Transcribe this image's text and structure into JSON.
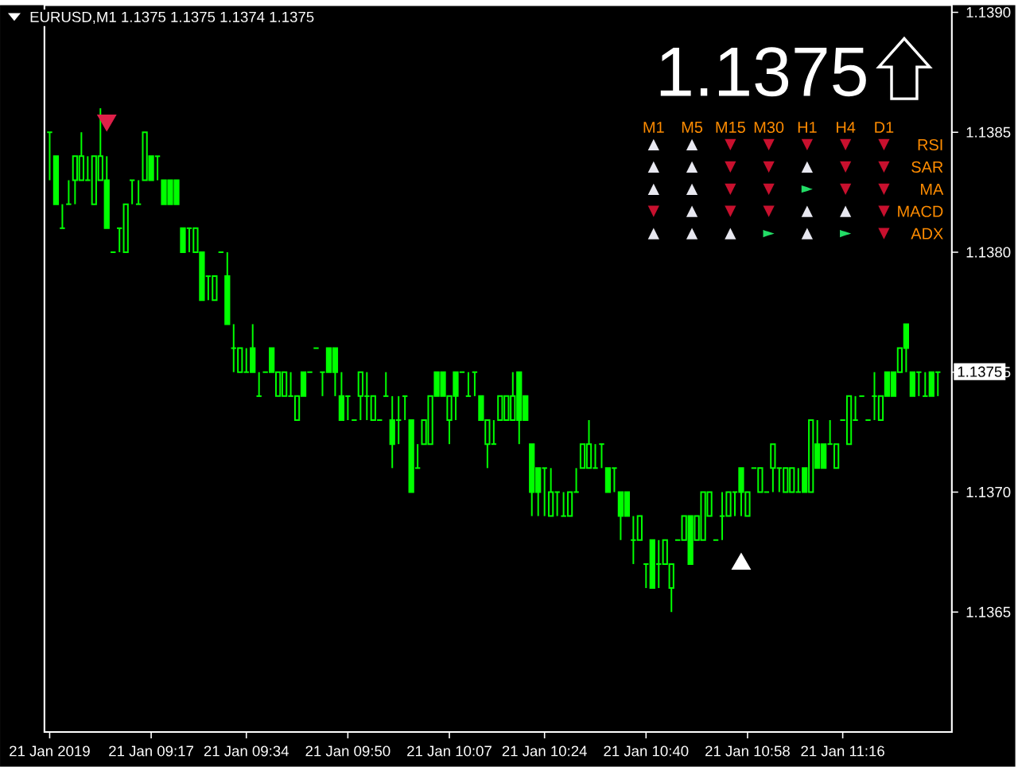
{
  "chart_data": [
    {
      "type": "candlestick",
      "title": "EURUSD,M1 1.1375 1.1375 1.1374 1.1375",
      "color": "#00ff00",
      "categories": [
        "21 Jan 2019",
        null,
        null,
        null,
        null,
        null,
        null,
        null,
        null,
        null,
        null,
        null,
        null,
        null,
        null,
        null,
        "21 Jan 09:17",
        null,
        null,
        null,
        null,
        null,
        null,
        null,
        null,
        null,
        null,
        null,
        null,
        null,
        null,
        "21 Jan 09:34",
        null,
        null,
        null,
        null,
        null,
        null,
        null,
        null,
        null,
        null,
        null,
        null,
        null,
        null,
        null,
        "21 Jan 09:50",
        null,
        null,
        null,
        null,
        null,
        null,
        null,
        null,
        null,
        null,
        null,
        null,
        null,
        null,
        null,
        "21 Jan 10:07",
        null,
        null,
        null,
        null,
        null,
        null,
        null,
        null,
        null,
        null,
        null,
        null,
        null,
        null,
        "21 Jan 10:24",
        null,
        null,
        null,
        null,
        null,
        null,
        null,
        null,
        null,
        null,
        null,
        null,
        null,
        null,
        null,
        "21 Jan 10:40",
        null,
        null,
        null,
        null,
        null,
        null,
        null,
        null,
        null,
        null,
        null,
        null,
        null,
        null,
        null,
        "21 Jan 10:58",
        null,
        null,
        null,
        null,
        null,
        null,
        null,
        null,
        null,
        null,
        null,
        null,
        null,
        null,
        "21 Jan 11:16",
        null,
        null,
        null,
        null,
        null,
        null,
        null,
        null,
        null,
        null,
        null,
        null,
        null,
        null,
        null
      ],
      "ohlc": [
        [
          1.1385,
          1.1385,
          1.1383,
          1.1385
        ],
        [
          1.1384,
          1.1384,
          1.1382,
          1.1382
        ],
        [
          1.1381,
          1.1382,
          1.1381,
          1.1381
        ],
        [
          1.1382,
          1.1383,
          1.1382,
          1.1382
        ],
        [
          1.1383,
          1.1384,
          1.1382,
          1.1384
        ],
        [
          1.1383,
          1.1385,
          1.1383,
          1.1384
        ],
        [
          1.1383,
          1.1384,
          1.1383,
          1.1383
        ],
        [
          1.1382,
          1.1384,
          1.1382,
          1.1384
        ],
        [
          1.1383,
          1.1386,
          1.1383,
          1.1384
        ],
        [
          1.1383,
          1.1384,
          1.1381,
          1.1381
        ],
        [
          1.138,
          1.138,
          1.138,
          1.138
        ],
        [
          1.1381,
          1.1381,
          1.138,
          1.1381
        ],
        [
          1.138,
          1.1382,
          1.138,
          1.1382
        ],
        [
          1.1383,
          1.1383,
          1.1382,
          1.1383
        ],
        [
          1.1382,
          1.1383,
          1.1382,
          1.1382
        ],
        [
          1.1383,
          1.1385,
          1.1383,
          1.1385
        ],
        [
          1.1384,
          1.1384,
          1.1383,
          1.1383
        ],
        [
          1.1384,
          1.1384,
          1.1383,
          1.1384
        ],
        [
          1.1383,
          1.1383,
          1.1382,
          1.1382
        ],
        [
          1.1383,
          1.1383,
          1.1382,
          1.1382
        ],
        [
          1.1383,
          1.1383,
          1.1382,
          1.1382
        ],
        [
          1.1381,
          1.1381,
          1.138,
          1.138
        ],
        [
          1.1381,
          1.1381,
          1.138,
          1.1381
        ],
        [
          1.138,
          1.1381,
          1.138,
          1.1381
        ],
        [
          1.138,
          1.138,
          1.1378,
          1.1378
        ],
        [
          1.1379,
          1.1379,
          1.1378,
          1.1379
        ],
        [
          1.1378,
          1.1379,
          1.1378,
          1.1379
        ],
        [
          1.138,
          1.138,
          1.138,
          1.138
        ],
        [
          1.1379,
          1.138,
          1.1377,
          1.1377
        ],
        [
          1.1376,
          1.1377,
          1.1375,
          1.1376
        ],
        [
          1.1375,
          1.1376,
          1.1375,
          1.1376
        ],
        [
          1.1375,
          1.1376,
          1.1375,
          1.1375
        ],
        [
          1.1376,
          1.1377,
          1.1375,
          1.1375
        ],
        [
          1.1374,
          1.1375,
          1.1374,
          1.1374
        ],
        [
          1.1375,
          1.1375,
          1.1375,
          1.1375
        ],
        [
          1.1376,
          1.1376,
          1.1375,
          1.1375
        ],
        [
          1.1374,
          1.1375,
          1.1374,
          1.1375
        ],
        [
          1.1374,
          1.1375,
          1.1374,
          1.1375
        ],
        [
          1.1374,
          1.1375,
          1.1374,
          1.1374
        ],
        [
          1.1373,
          1.1374,
          1.1373,
          1.1374
        ],
        [
          1.1375,
          1.1375,
          1.1374,
          1.1374
        ],
        [
          1.1375,
          1.1375,
          1.1375,
          1.1375
        ],
        [
          1.1376,
          1.1376,
          1.1376,
          1.1376
        ],
        [
          1.1375,
          1.1375,
          1.1374,
          1.1375
        ],
        [
          1.1376,
          1.1376,
          1.1375,
          1.1375
        ],
        [
          1.1376,
          1.1376,
          1.1374,
          1.1375
        ],
        [
          1.1374,
          1.1375,
          1.1373,
          1.1373
        ],
        [
          1.1374,
          1.1374,
          1.1373,
          1.1374
        ],
        [
          1.1373,
          1.1373,
          1.1373,
          1.1373
        ],
        [
          1.1374,
          1.1375,
          1.1373,
          1.1375
        ],
        [
          1.1374,
          1.1375,
          1.1373,
          1.1374
        ],
        [
          1.1373,
          1.1374,
          1.1373,
          1.1374
        ],
        [
          1.1373,
          1.1373,
          1.1373,
          1.1373
        ],
        [
          1.1374,
          1.1375,
          1.1374,
          1.1374
        ],
        [
          1.1373,
          1.1374,
          1.1371,
          1.1372
        ],
        [
          1.1373,
          1.1374,
          1.1372,
          1.1373
        ],
        [
          1.1374,
          1.1374,
          1.1373,
          1.1374
        ],
        [
          1.1373,
          1.1373,
          1.137,
          1.137
        ],
        [
          1.1371,
          1.1372,
          1.1371,
          1.1371
        ],
        [
          1.1372,
          1.1373,
          1.1372,
          1.1373
        ],
        [
          1.1372,
          1.1374,
          1.1372,
          1.1374
        ],
        [
          1.1375,
          1.1375,
          1.1374,
          1.1374
        ],
        [
          1.1375,
          1.1375,
          1.1374,
          1.1374
        ],
        [
          1.1373,
          1.1374,
          1.1372,
          1.1374
        ],
        [
          1.1375,
          1.1375,
          1.1373,
          1.1374
        ],
        [
          1.1375,
          1.1375,
          1.1375,
          1.1375
        ],
        [
          1.1374,
          1.1375,
          1.1374,
          1.1374
        ],
        [
          1.1375,
          1.1375,
          1.1374,
          1.1375
        ],
        [
          1.1374,
          1.1374,
          1.1373,
          1.1373
        ],
        [
          1.1372,
          1.1373,
          1.1371,
          1.1373
        ],
        [
          1.1372,
          1.1373,
          1.1372,
          1.1372
        ],
        [
          1.1373,
          1.1374,
          1.1373,
          1.1374
        ],
        [
          1.1373,
          1.1374,
          1.1373,
          1.1374
        ],
        [
          1.1373,
          1.1375,
          1.1373,
          1.1374
        ],
        [
          1.1375,
          1.1375,
          1.1372,
          1.1373
        ],
        [
          1.1374,
          1.1374,
          1.1373,
          1.1373
        ],
        [
          1.1372,
          1.1372,
          1.1369,
          1.137
        ],
        [
          1.1371,
          1.1371,
          1.1369,
          1.137
        ],
        [
          1.1371,
          1.1371,
          1.1369,
          1.1371
        ],
        [
          1.1369,
          1.1371,
          1.1369,
          1.137
        ],
        [
          1.137,
          1.137,
          1.1369,
          1.137
        ],
        [
          1.1369,
          1.137,
          1.1369,
          1.1369
        ],
        [
          1.1369,
          1.137,
          1.1369,
          1.137
        ],
        [
          1.137,
          1.1371,
          1.137,
          1.137
        ],
        [
          1.1371,
          1.1372,
          1.1371,
          1.1372
        ],
        [
          1.1371,
          1.1373,
          1.1371,
          1.1372
        ],
        [
          1.1371,
          1.1372,
          1.1371,
          1.1371
        ],
        [
          1.1372,
          1.1372,
          1.1371,
          1.1372
        ],
        [
          1.1371,
          1.1371,
          1.137,
          1.137
        ],
        [
          1.1371,
          1.1371,
          1.137,
          1.1371
        ],
        [
          1.137,
          1.137,
          1.1368,
          1.1369
        ],
        [
          1.137,
          1.137,
          1.1369,
          1.1369
        ],
        [
          1.1368,
          1.1369,
          1.1367,
          1.1368
        ],
        [
          1.1368,
          1.1369,
          1.1368,
          1.1369
        ],
        [
          1.1367,
          1.1367,
          1.1366,
          1.1367
        ],
        [
          1.1368,
          1.1368,
          1.1366,
          1.1366
        ],
        [
          1.1367,
          1.1368,
          1.1366,
          1.1367
        ],
        [
          1.1367,
          1.1368,
          1.1367,
          1.1368
        ],
        [
          1.1366,
          1.1367,
          1.1365,
          1.1367
        ],
        [
          1.1368,
          1.1368,
          1.1368,
          1.1368
        ],
        [
          1.1368,
          1.1369,
          1.1368,
          1.1369
        ],
        [
          1.1369,
          1.1369,
          1.1367,
          1.1367
        ],
        [
          1.1368,
          1.1369,
          1.1368,
          1.1369
        ],
        [
          1.1368,
          1.137,
          1.1368,
          1.137
        ],
        [
          1.1369,
          1.137,
          1.1369,
          1.137
        ],
        [
          1.1368,
          1.1368,
          1.1368,
          1.1368
        ],
        [
          1.1369,
          1.137,
          1.1368,
          1.1369
        ],
        [
          1.1369,
          1.137,
          1.1369,
          1.137
        ],
        [
          1.137,
          1.137,
          1.1369,
          1.137
        ],
        [
          1.1371,
          1.1371,
          1.1369,
          1.137
        ],
        [
          1.1369,
          1.137,
          1.1369,
          1.137
        ],
        [
          1.1371,
          1.1371,
          1.1371,
          1.1371
        ],
        [
          1.137,
          1.1371,
          1.137,
          1.1371
        ],
        [
          1.137,
          1.137,
          1.137,
          1.137
        ],
        [
          1.1371,
          1.1372,
          1.137,
          1.1372
        ],
        [
          1.1371,
          1.1371,
          1.137,
          1.1371
        ],
        [
          1.137,
          1.1371,
          1.137,
          1.1371
        ],
        [
          1.137,
          1.1371,
          1.137,
          1.1371
        ],
        [
          1.137,
          1.1371,
          1.137,
          1.137
        ],
        [
          1.1371,
          1.1371,
          1.137,
          1.137
        ],
        [
          1.137,
          1.1373,
          1.137,
          1.1373
        ],
        [
          1.1372,
          1.1373,
          1.1371,
          1.1371
        ],
        [
          1.1372,
          1.1372,
          1.1371,
          1.1371
        ],
        [
          1.1372,
          1.1373,
          1.1372,
          1.1372
        ],
        [
          1.1371,
          1.1372,
          1.1371,
          1.1372
        ],
        [
          1.1373,
          1.1373,
          1.1373,
          1.1373
        ],
        [
          1.1372,
          1.1374,
          1.1372,
          1.1374
        ],
        [
          1.1373,
          1.1374,
          1.1373,
          1.1373
        ],
        [
          1.1374,
          1.1374,
          1.1374,
          1.1374
        ],
        [
          1.1373,
          1.1373,
          1.1373,
          1.1373
        ],
        [
          1.1374,
          1.1375,
          1.1373,
          1.1374
        ],
        [
          1.1373,
          1.1374,
          1.1373,
          1.1374
        ],
        [
          1.1375,
          1.1375,
          1.1374,
          1.1374
        ],
        [
          1.1375,
          1.1375,
          1.1374,
          1.1374
        ],
        [
          1.1375,
          1.1376,
          1.1375,
          1.1376
        ],
        [
          1.1377,
          1.1377,
          1.1375,
          1.1376
        ],
        [
          1.1375,
          1.1375,
          1.1374,
          1.1374
        ],
        [
          1.1375,
          1.1375,
          1.1374,
          1.1375
        ],
        [
          1.1374,
          1.1375,
          1.1374,
          1.1374
        ],
        [
          1.1375,
          1.1375,
          1.1374,
          1.1374
        ],
        [
          1.1375,
          1.1375,
          1.1374,
          1.1375
        ]
      ],
      "series": [
        {
          "type": "scatter",
          "marker": "triangle",
          "color": "#e0204a",
          "values": [
            null,
            null,
            null,
            null,
            null,
            null,
            null,
            null,
            null,
            1.13855,
            null,
            null,
            null,
            null,
            null,
            null,
            null,
            null,
            null,
            null,
            null,
            null,
            null,
            null,
            null,
            null,
            null,
            null,
            null,
            null,
            null,
            null,
            null,
            null,
            null,
            null,
            null,
            null,
            null,
            null,
            null,
            null,
            null,
            null,
            null,
            null,
            null,
            null,
            null,
            null,
            null,
            null,
            null,
            null,
            null,
            null,
            null,
            null,
            null,
            null,
            null,
            null,
            null,
            null,
            null,
            null,
            null,
            null,
            null,
            null,
            null,
            null,
            null,
            null,
            null,
            null,
            null,
            null,
            null,
            null,
            null,
            null,
            null,
            null,
            null,
            null,
            null,
            null,
            null,
            null,
            null,
            null,
            null,
            null,
            null,
            null,
            null,
            null,
            null,
            null,
            null,
            null,
            null,
            null,
            null,
            null,
            null,
            null,
            null,
            null,
            null,
            null,
            null,
            null,
            null,
            null,
            null,
            null,
            null,
            null,
            null,
            null,
            null,
            null,
            null,
            null,
            null,
            null,
            null,
            null,
            null,
            null,
            null,
            null,
            null,
            null,
            null,
            null,
            null,
            null,
            null
          ]
        },
        {
          "type": "scatter",
          "marker": "triangle",
          "color": "#ffffff",
          "values": [
            null,
            null,
            null,
            null,
            null,
            null,
            null,
            null,
            null,
            null,
            null,
            null,
            null,
            null,
            null,
            null,
            null,
            null,
            null,
            null,
            null,
            null,
            null,
            null,
            null,
            null,
            null,
            null,
            null,
            null,
            null,
            null,
            null,
            null,
            null,
            null,
            null,
            null,
            null,
            null,
            null,
            null,
            null,
            null,
            null,
            null,
            null,
            null,
            null,
            null,
            null,
            null,
            null,
            null,
            null,
            null,
            null,
            null,
            null,
            null,
            null,
            null,
            null,
            null,
            null,
            null,
            null,
            null,
            null,
            null,
            null,
            null,
            null,
            null,
            null,
            null,
            null,
            null,
            null,
            null,
            null,
            null,
            null,
            null,
            null,
            null,
            null,
            null,
            null,
            null,
            null,
            null,
            null,
            null,
            null,
            null,
            null,
            null,
            null,
            null,
            null,
            null,
            null,
            null,
            null,
            null,
            null,
            null,
            null,
            1.1367,
            null,
            null,
            null,
            null,
            null,
            null,
            null,
            null,
            null,
            null,
            null,
            null,
            null,
            null,
            null,
            null,
            null,
            null,
            null,
            null,
            null,
            null,
            null,
            null,
            null,
            null,
            null,
            null,
            null,
            null,
            null
          ]
        }
      ],
      "ylim": [
        1.136,
        1.13903
      ],
      "yticks": [
        1.1365,
        {
          "value": 1.137,
          "label": "1.1370"
        },
        1.1375,
        {
          "value": 1.138,
          "label": "1.1380"
        },
        1.1385,
        {
          "value": 1.139,
          "label": "1.1390"
        }
      ],
      "annotations": [
        "1.1375",
        "1.1375"
      ]
    },
    {
      "type": "other",
      "categories": [
        "M1",
        "M5",
        "M15",
        "M30",
        "H1",
        "H4",
        "D1"
      ],
      "y_categories": [
        "RSI",
        "SAR",
        "MA",
        "MACD",
        "ADX"
      ],
      "cell_labels": [
        [
          "▲",
          "▲",
          "▼",
          "▼",
          "▼",
          "▼",
          "▼"
        ],
        [
          "▲",
          "▲",
          "▼",
          "▼",
          "▲",
          "▼",
          "▼"
        ],
        [
          "▲",
          "▲",
          "▼",
          "▼",
          "►",
          "▼",
          "▼"
        ],
        [
          "▼",
          "▲",
          "▼",
          "▼",
          "▲",
          "▲",
          "▼"
        ],
        [
          "▲",
          "▲",
          "▲",
          "►",
          "▲",
          "►",
          "▼"
        ]
      ],
      "colors": [
        [
          "#e8e8f0",
          "#e8e8f0",
          "#c8102e",
          "#c8102e",
          "#c8102e",
          "#c8102e",
          "#c8102e"
        ],
        [
          "#e8e8f0",
          "#e8e8f0",
          "#c8102e",
          "#c8102e",
          "#e8e8f0",
          "#c8102e",
          "#c8102e"
        ],
        [
          "#e8e8f0",
          "#e8e8f0",
          "#c8102e",
          "#c8102e",
          "#22dd66",
          "#c8102e",
          "#c8102e"
        ],
        [
          "#c8102e",
          "#e8e8f0",
          "#c8102e",
          "#c8102e",
          "#e8e8f0",
          "#e8e8f0",
          "#c8102e"
        ],
        [
          "#e8e8f0",
          "#e8e8f0",
          "#e8e8f0",
          "#22dd66",
          "#e8e8f0",
          "#22dd66",
          "#c8102e"
        ]
      ],
      "color": "#ff8c00"
    }
  ]
}
